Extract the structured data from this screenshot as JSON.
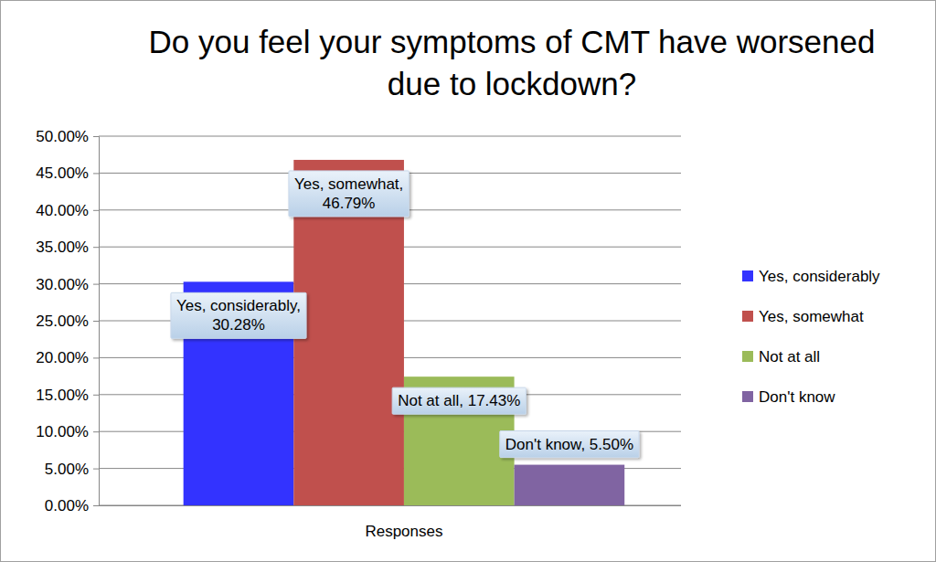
{
  "chart_data": {
    "type": "bar",
    "title": "Do you feel your symptoms of CMT have worsened due to lockdown?",
    "categories": [
      "Responses"
    ],
    "series": [
      {
        "name": "Yes, considerably",
        "color": "#3333ff",
        "values": [
          30.28
        ],
        "value_labels": [
          "Yes, considerably, 30.28%"
        ]
      },
      {
        "name": "Yes, somewhat",
        "color": "#c0504d",
        "values": [
          46.79
        ],
        "value_labels": [
          "Yes, somewhat, 46.79%"
        ]
      },
      {
        "name": "Not at all",
        "color": "#9bbb59",
        "values": [
          17.43
        ],
        "value_labels": [
          "Not at all, 17.43%"
        ]
      },
      {
        "name": "Don't know",
        "color": "#8064a2",
        "values": [
          5.5
        ],
        "value_labels": [
          "Don't know, 5.50%"
        ]
      }
    ],
    "ylim": [
      0,
      50
    ],
    "yticks": [
      {
        "value": 0,
        "label": "0.00%"
      },
      {
        "value": 5,
        "label": "5.00%"
      },
      {
        "value": 10,
        "label": "10.00%"
      },
      {
        "value": 15,
        "label": "15.00%"
      },
      {
        "value": 20,
        "label": "20.00%"
      },
      {
        "value": 25,
        "label": "25.00%"
      },
      {
        "value": 30,
        "label": "30.00%"
      },
      {
        "value": 35,
        "label": "35.00%"
      },
      {
        "value": 40,
        "label": "40.00%"
      },
      {
        "value": 45,
        "label": "45.00%"
      },
      {
        "value": 50,
        "label": "50.00%"
      }
    ],
    "grid": true,
    "legend": "right",
    "data_labels": true
  }
}
